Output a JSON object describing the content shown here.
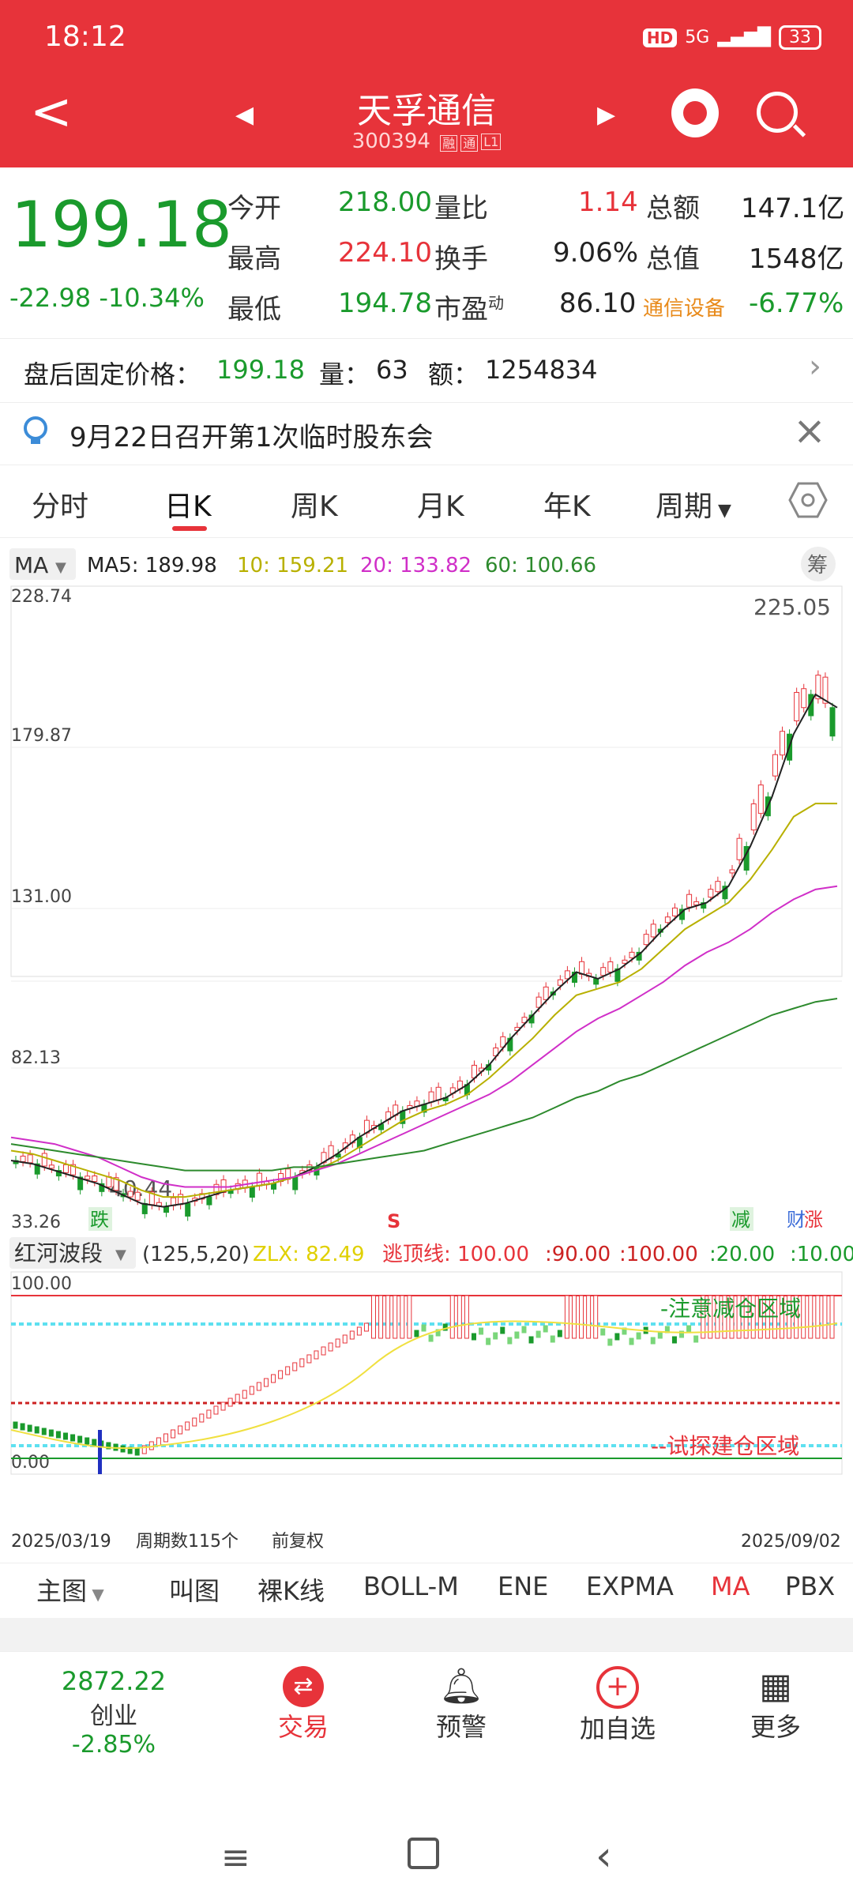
{
  "status": {
    "time": "18:12",
    "hd": "HD",
    "net": "5G",
    "battery": "33"
  },
  "header": {
    "name": "天孚通信",
    "code": "300394",
    "tag1": "融",
    "tag2": "通",
    "tag3": "L1",
    "back": "<",
    "prev": "◀",
    "next": "▶"
  },
  "quote": {
    "price": "199.18",
    "change": "-22.98",
    "change_pct": "-10.34%",
    "rows": [
      {
        "l1": "今开",
        "v1": "218.00",
        "l2": "量比",
        "v2": "1.14",
        "l3": "总额",
        "v3": "147.1亿"
      },
      {
        "l1": "最高",
        "v1": "224.10",
        "l2": "换手",
        "v2": "9.06%",
        "l3": "总值",
        "v3": "1548亿"
      },
      {
        "l1": "最低",
        "v1": "194.78",
        "l2": "市盈",
        "l2sup": "动",
        "v2": "86.10",
        "l3": "通信设备",
        "v3": "-6.77%"
      }
    ]
  },
  "after_hours": {
    "label": "盘后固定价格：",
    "price": "199.18",
    "vol_label": "量：",
    "vol": "63",
    "amt_label": "额：",
    "amt": "1254834"
  },
  "notice": {
    "text": "9月22日召开第1次临时股东会"
  },
  "tabs": [
    "分时",
    "日K",
    "周K",
    "月K",
    "年K",
    "周期"
  ],
  "ma": {
    "selector": "MA",
    "ma5": "MA5: 189.98",
    "ma10": "10: 159.21",
    "ma20": "20: 133.82",
    "ma60": "60: 100.66",
    "chip": "筹"
  },
  "main_axis": {
    "y1": "228.74",
    "y2": "179.87",
    "y3": "131.00",
    "y4": "82.13",
    "y5": "33.26",
    "high": "225.05",
    "low": "40.44",
    "m1": "跌",
    "m2": "S",
    "m3": "减",
    "m4": "财",
    "m5": "涨"
  },
  "indicator": {
    "name": "红河波段",
    "params": "(125,5,20)",
    "zlx": "ZLX: 82.49",
    "line": "逃顶线: 100.00",
    "v1": ":90.00",
    "v2": ":100.00",
    "v3": ":20.00",
    "v4": ":10.00",
    "top": "100.00",
    "bottom": "0.00",
    "zone_top": "-注意减仓区域",
    "zone_bottom": "--试探建仓区域"
  },
  "footer_axis": {
    "start": "2025/03/19",
    "count": "周期数115个",
    "fq": "前复权",
    "end": "2025/09/02"
  },
  "indicators": [
    "主图",
    "叫图",
    "裸K线",
    "BOLL-M",
    "ENE",
    "EXPMA",
    "MA",
    "PBX"
  ],
  "bottom_nav": {
    "index_value": "2872.22",
    "index_name": "创业",
    "index_chg": "-2.85%",
    "trade": "交易",
    "alert": "预警",
    "add": "加自选",
    "more": "更多"
  },
  "colors": {
    "brand": "#e7333a",
    "down": "#1a9a2c",
    "up": "#e7333a",
    "ma5": "#222222",
    "ma10": "#b8b000",
    "ma20": "#d02fc8",
    "ma60": "#2d8a2d"
  },
  "chart_data": [
    {
      "type": "line",
      "series": [
        {
          "name": "MA5",
          "values": [
            55,
            54,
            52,
            50,
            48,
            45,
            42,
            41,
            42,
            44,
            46,
            47,
            48,
            50,
            53,
            57,
            62,
            66,
            70,
            72,
            74,
            78,
            84,
            92,
            99,
            106,
            112,
            110,
            113,
            118,
            125,
            131,
            133,
            138,
            150,
            165,
            184,
            196,
            192
          ]
        },
        {
          "name": "10",
          "values": [
            58,
            57,
            55,
            53,
            51,
            49,
            46,
            44,
            44,
            45,
            46,
            47,
            48,
            50,
            52,
            55,
            59,
            63,
            67,
            70,
            72,
            75,
            80,
            86,
            92,
            99,
            105,
            107,
            109,
            113,
            119,
            125,
            129,
            133,
            140,
            149,
            159,
            163,
            163
          ]
        },
        {
          "name": "20",
          "values": [
            62,
            61,
            60,
            58,
            56,
            53,
            50,
            48,
            47,
            47,
            47,
            48,
            49,
            50,
            52,
            54,
            57,
            60,
            63,
            66,
            69,
            72,
            75,
            79,
            84,
            89,
            94,
            98,
            101,
            105,
            109,
            114,
            118,
            121,
            125,
            130,
            134,
            137,
            138
          ]
        },
        {
          "name": "60",
          "values": [
            60,
            59,
            58,
            57,
            56,
            55,
            54,
            53,
            52,
            52,
            52,
            52,
            52,
            53,
            53,
            54,
            55,
            56,
            57,
            58,
            60,
            62,
            64,
            66,
            68,
            71,
            74,
            76,
            79,
            81,
            84,
            87,
            90,
            93,
            96,
            99,
            101,
            103,
            104
          ]
        }
      ],
      "ylim": [
        33.26,
        228.74
      ]
    }
  ]
}
